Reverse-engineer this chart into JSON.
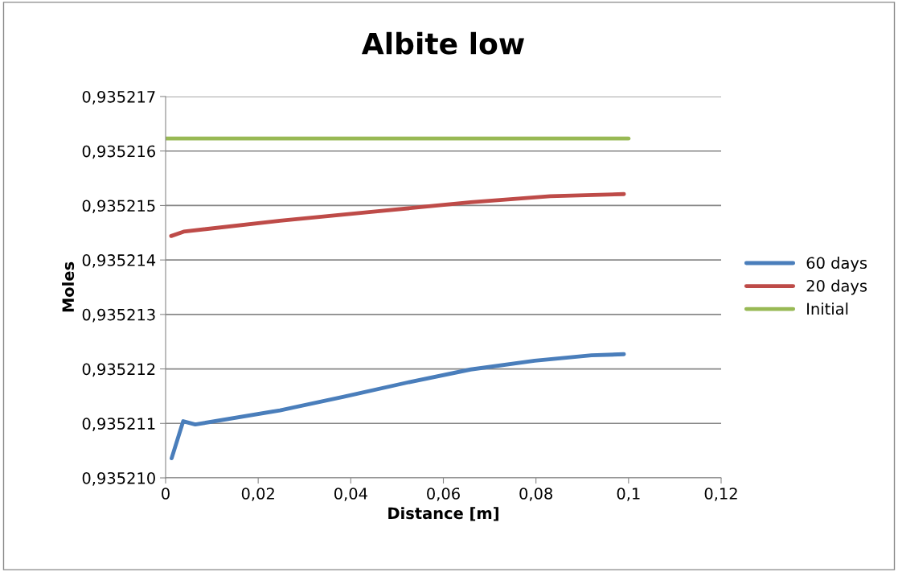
{
  "chart_data": {
    "type": "line",
    "title": "Albite low",
    "xlabel": "Distance [m]",
    "ylabel": "Moles",
    "xlim": [
      0,
      0.12
    ],
    "xticks": [
      0,
      {
        "value": 0.02,
        "label": "0,02"
      },
      {
        "value": 0.04,
        "label": "0,04"
      },
      {
        "value": 0.06,
        "label": "0,06"
      },
      {
        "value": 0.08,
        "label": "0,08"
      },
      {
        "value": 0.1,
        "label": "0,1"
      },
      {
        "value": 0.12,
        "label": "0,12"
      }
    ],
    "ylim": [
      0.93521,
      0.935217
    ],
    "yticks": [
      {
        "value": 0.93521,
        "label": "0,935210"
      },
      {
        "value": 0.935211,
        "label": "0,935211"
      },
      {
        "value": 0.935212,
        "label": "0,935212"
      },
      {
        "value": 0.935213,
        "label": "0,935213"
      },
      {
        "value": 0.935214,
        "label": "0,935214"
      },
      {
        "value": 0.935215,
        "label": "0,935215"
      },
      {
        "value": 0.935216,
        "label": "0,935216"
      },
      {
        "value": 0.935217,
        "label": "0,935217"
      }
    ],
    "grid": "y",
    "legend": "right",
    "marker": "none",
    "line_style": "solid",
    "series": [
      {
        "name": "60 days",
        "color": "#4a7ebb",
        "x": [
          0.0013,
          0.0038,
          0.0064,
          0.0247,
          0.0385,
          0.0522,
          0.0659,
          0.0797,
          0.092,
          0.099
        ],
        "values": [
          0.93521036,
          0.93521104,
          0.93521098,
          0.93521124,
          0.93521149,
          0.93521175,
          0.93521199,
          0.93521215,
          0.93521225,
          0.93521227
        ]
      },
      {
        "name": "20 days",
        "color": "#be4b48",
        "x": [
          0.0012,
          0.0039,
          0.0247,
          0.0453,
          0.0659,
          0.0831,
          0.099
        ],
        "values": [
          0.93521444,
          0.93521452,
          0.93521472,
          0.93521489,
          0.93521506,
          0.93521517,
          0.93521521
        ]
      },
      {
        "name": "Initial",
        "color": "#98b954",
        "x": [
          0.0,
          0.1
        ],
        "values": [
          0.93521623,
          0.93521623
        ]
      }
    ]
  }
}
